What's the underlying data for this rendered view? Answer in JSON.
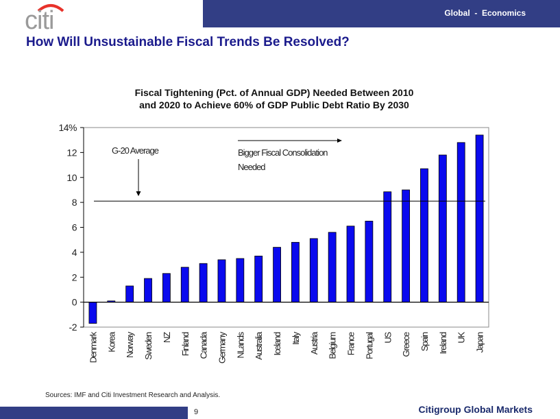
{
  "header": {
    "section_label": "Global  -  Economics",
    "logo_text": "citi"
  },
  "slide": {
    "title": "How Will Unsustainable Fiscal Trends Be Resolved?",
    "sources": "Sources: IMF and Citi Investment Research and Analysis.",
    "page_number": "9",
    "footer_brand": "Citigroup Global Markets"
  },
  "colors": {
    "bar": "#0a0aee",
    "header_bar": "#323e85",
    "title": "#1a1a8c",
    "logo_arc": "#e8322a",
    "logo_text": "#9a9a9a"
  },
  "chart_data": {
    "type": "bar",
    "title_line1": "Fiscal Tightening (Pct. of Annual GDP) Needed Between 2010",
    "title_line2": "and 2020 to Achieve 60% of GDP Public Debt Ratio By 2030",
    "xlabel": "",
    "ylabel": "",
    "ylim": [
      -2,
      14
    ],
    "yticks": [
      -2,
      0,
      2,
      4,
      6,
      8,
      10,
      12,
      14
    ],
    "ytick_labels": [
      "-2",
      "0",
      "2",
      "4",
      "6",
      "8",
      "10",
      "12",
      "14%"
    ],
    "grid": false,
    "legend": "none",
    "categories": [
      "Denmark",
      "Korea",
      "Norway",
      "Sweden",
      "NZ",
      "Finland",
      "Canada",
      "Germany",
      "NLands",
      "Australia",
      "Iceland",
      "Italy",
      "Austria",
      "Belgium",
      "France",
      "Portugal",
      "US",
      "Greece",
      "Spain",
      "Ireland",
      "UK",
      "Japan"
    ],
    "values": [
      -1.7,
      0.1,
      1.3,
      1.9,
      2.3,
      2.8,
      3.1,
      3.4,
      3.5,
      3.7,
      4.4,
      4.8,
      5.1,
      5.6,
      6.1,
      6.5,
      8.85,
      9.0,
      10.7,
      11.8,
      12.8,
      13.4
    ],
    "reference_line": {
      "label": "G-20 Average",
      "value": 8.1
    },
    "annotations": [
      {
        "text": "G-20 Average",
        "type": "down-arrow-to-line"
      },
      {
        "text_line1": "Bigger Fiscal Consolidation",
        "text_line2": "Needed",
        "type": "right-arrow"
      }
    ]
  }
}
